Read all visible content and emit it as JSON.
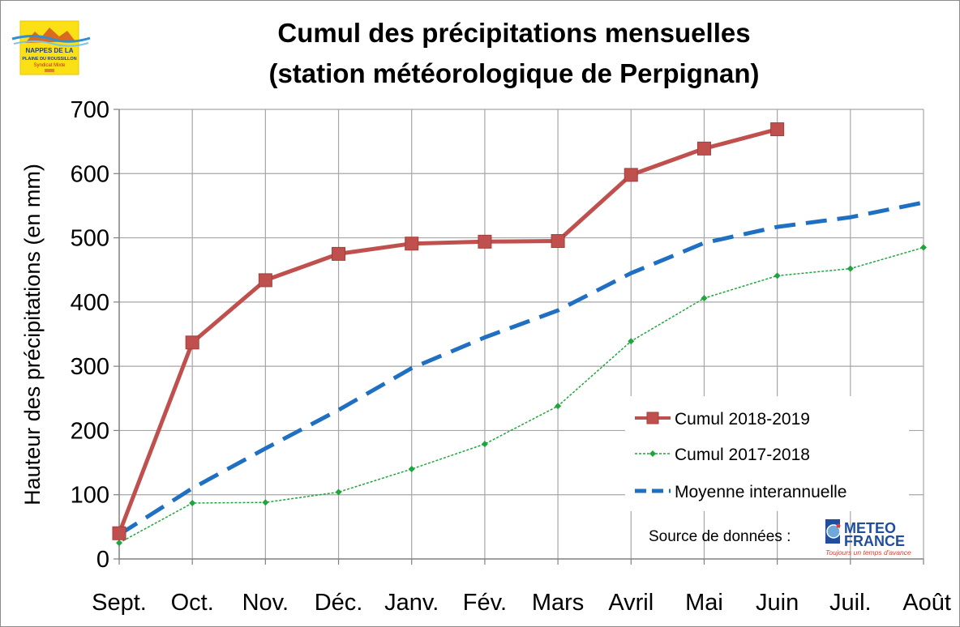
{
  "chart_data": {
    "type": "line",
    "title_lines": [
      "Cumul des précipitations mensuelles",
      "(station météorologique de Perpignan)"
    ],
    "ylabel": "Hauteur des précipitations (en mm)",
    "xlabel": "",
    "categories": [
      "Sept.",
      "Oct.",
      "Nov.",
      "Déc.",
      "Janv.",
      "Fév.",
      "Mars",
      "Avril",
      "Mai",
      "Juin",
      "Juil.",
      "Août"
    ],
    "ylim": [
      0,
      700
    ],
    "yticks": [
      0,
      100,
      200,
      300,
      400,
      500,
      600,
      700
    ],
    "grid": true,
    "legend_position": "bottom-right",
    "series": [
      {
        "name": "Cumul 2018-2019",
        "values": [
          40,
          337,
          434,
          475,
          491,
          494,
          495,
          598,
          639,
          669,
          null,
          null
        ],
        "color": "#c0504d",
        "style": "solid-square-markers"
      },
      {
        "name": "Cumul 2017-2018",
        "values": [
          25,
          87,
          88,
          104,
          140,
          179,
          238,
          339,
          406,
          441,
          452,
          485
        ],
        "color": "#1ea53c",
        "style": "dotted-diamond-markers"
      },
      {
        "name": "Moyenne interannuelle",
        "values": [
          38,
          110,
          172,
          232,
          297,
          345,
          387,
          445,
          492,
          517,
          532,
          555
        ],
        "color": "#1f6fc2",
        "style": "dashed"
      }
    ]
  },
  "source": {
    "label": "Source de données :",
    "logo_brand": [
      "METEO",
      "FRANCE"
    ],
    "logo_tagline": "Toujours un temps d'avance"
  },
  "logo": {
    "lines": [
      "NAPPES DE LA",
      "PLAINE DU ROUSSILLON",
      "Syndicat Mixte"
    ]
  },
  "colors": {
    "grid": "#a6a6a6",
    "axis": "#808080"
  }
}
